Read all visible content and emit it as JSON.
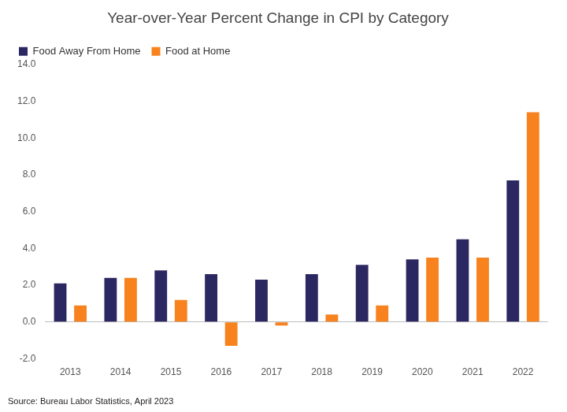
{
  "chart_data": {
    "type": "bar",
    "title": "Year-over-Year Percent Change in CPI by Category",
    "annotation": "Source: Bureau Labor Statistics, April 2023",
    "categories": [
      "2013",
      "2014",
      "2015",
      "2016",
      "2017",
      "2018",
      "2019",
      "2020",
      "2021",
      "2022"
    ],
    "series": [
      {
        "name": "Food Away From Home",
        "color": "#2b2760",
        "values": [
          2.1,
          2.4,
          2.8,
          2.6,
          2.3,
          2.6,
          3.1,
          3.4,
          4.5,
          7.7
        ]
      },
      {
        "name": "Food at Home",
        "color": "#f7821e",
        "values": [
          0.9,
          2.4,
          1.2,
          -1.3,
          -0.2,
          0.4,
          0.9,
          3.5,
          3.5,
          11.4
        ]
      }
    ],
    "ylim": [
      -2,
      14
    ],
    "yticks": [
      {
        "value": -2,
        "label": "-2.0"
      },
      {
        "value": 0,
        "label": "0.0"
      },
      {
        "value": 2,
        "label": "2.0"
      },
      {
        "value": 4,
        "label": "4.0"
      },
      {
        "value": 6,
        "label": "6.0"
      },
      {
        "value": 8,
        "label": "8.0"
      },
      {
        "value": 10,
        "label": "10.0"
      },
      {
        "value": 12,
        "label": "12.0"
      },
      {
        "value": 14,
        "label": "14.0"
      }
    ],
    "grid": false,
    "legend": "upper left"
  }
}
